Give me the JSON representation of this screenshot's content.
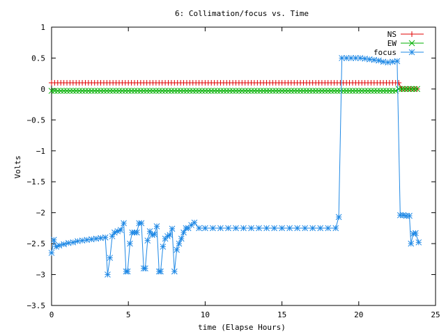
{
  "chart_data": {
    "type": "line",
    "title": "6: Collimation/focus vs. Time",
    "xlabel": "time (Elapse Hours)",
    "ylabel": "Volts",
    "xlim": [
      0,
      25
    ],
    "ylim": [
      -3.5,
      1
    ],
    "xticks": [
      0,
      5,
      10,
      15,
      20,
      25
    ],
    "yticks": [
      1,
      0.5,
      0,
      -0.5,
      -1,
      -1.5,
      -2,
      -2.5,
      -3,
      -3.5
    ],
    "grid": false,
    "legend_position": "top-right",
    "series": [
      {
        "name": "NS",
        "color": "#e00000",
        "marker": "plus",
        "x": [
          0.0,
          0.2,
          0.4,
          0.6,
          0.8,
          1.0,
          1.2,
          1.4,
          1.6,
          1.8,
          2.0,
          2.2,
          2.4,
          2.6,
          2.8,
          3.0,
          3.2,
          3.4,
          3.6,
          3.8,
          4.0,
          4.2,
          4.4,
          4.6,
          4.8,
          5.0,
          5.2,
          5.4,
          5.6,
          5.8,
          6.0,
          6.2,
          6.4,
          6.6,
          6.8,
          7.0,
          7.2,
          7.4,
          7.6,
          7.8,
          8.0,
          8.2,
          8.4,
          8.6,
          8.8,
          9.0,
          9.2,
          9.4,
          9.6,
          9.8,
          10.0,
          10.2,
          10.4,
          10.6,
          10.8,
          11.0,
          11.2,
          11.4,
          11.6,
          11.8,
          12.0,
          12.2,
          12.4,
          12.6,
          12.8,
          13.0,
          13.2,
          13.4,
          13.6,
          13.8,
          14.0,
          14.2,
          14.4,
          14.6,
          14.8,
          15.0,
          15.2,
          15.4,
          15.6,
          15.8,
          16.0,
          16.2,
          16.4,
          16.6,
          16.8,
          17.0,
          17.2,
          17.4,
          17.6,
          17.8,
          18.0,
          18.2,
          18.4,
          18.6,
          18.8,
          19.0,
          19.2,
          19.4,
          19.6,
          19.8,
          20.0,
          20.2,
          20.4,
          20.6,
          20.8,
          21.0,
          21.2,
          21.4,
          21.6,
          21.8,
          22.0,
          22.2,
          22.4,
          22.6,
          22.8,
          23.0,
          23.2,
          23.4,
          23.6,
          23.8
        ],
        "y": [
          0.1,
          0.1,
          0.1,
          0.1,
          0.1,
          0.1,
          0.1,
          0.1,
          0.1,
          0.1,
          0.1,
          0.1,
          0.1,
          0.1,
          0.1,
          0.1,
          0.1,
          0.1,
          0.1,
          0.1,
          0.1,
          0.1,
          0.1,
          0.1,
          0.1,
          0.1,
          0.1,
          0.1,
          0.1,
          0.1,
          0.1,
          0.1,
          0.1,
          0.1,
          0.1,
          0.1,
          0.1,
          0.1,
          0.1,
          0.1,
          0.1,
          0.1,
          0.1,
          0.1,
          0.1,
          0.1,
          0.1,
          0.1,
          0.1,
          0.1,
          0.1,
          0.1,
          0.1,
          0.1,
          0.1,
          0.1,
          0.1,
          0.1,
          0.1,
          0.1,
          0.1,
          0.1,
          0.1,
          0.1,
          0.1,
          0.1,
          0.1,
          0.1,
          0.1,
          0.1,
          0.1,
          0.1,
          0.1,
          0.1,
          0.1,
          0.1,
          0.1,
          0.1,
          0.1,
          0.1,
          0.1,
          0.1,
          0.1,
          0.1,
          0.1,
          0.1,
          0.1,
          0.1,
          0.1,
          0.1,
          0.1,
          0.1,
          0.1,
          0.1,
          0.1,
          0.1,
          0.1,
          0.1,
          0.1,
          0.1,
          0.1,
          0.1,
          0.1,
          0.1,
          0.1,
          0.1,
          0.1,
          0.1,
          0.1,
          0.1,
          0.1,
          0.1,
          0.1,
          0.1,
          0.0,
          0.0,
          0.0,
          0.0,
          0.0,
          0.0
        ]
      },
      {
        "name": "EW",
        "color": "#00b000",
        "marker": "cross",
        "x": [
          0.0,
          0.2,
          0.4,
          0.6,
          0.8,
          1.0,
          1.2,
          1.4,
          1.6,
          1.8,
          2.0,
          2.2,
          2.4,
          2.6,
          2.8,
          3.0,
          3.2,
          3.4,
          3.6,
          3.8,
          4.0,
          4.2,
          4.4,
          4.6,
          4.8,
          5.0,
          5.2,
          5.4,
          5.6,
          5.8,
          6.0,
          6.2,
          6.4,
          6.6,
          6.8,
          7.0,
          7.2,
          7.4,
          7.6,
          7.8,
          8.0,
          8.2,
          8.4,
          8.6,
          8.8,
          9.0,
          9.2,
          9.4,
          9.6,
          9.8,
          10.0,
          10.2,
          10.4,
          10.6,
          10.8,
          11.0,
          11.2,
          11.4,
          11.6,
          11.8,
          12.0,
          12.2,
          12.4,
          12.6,
          12.8,
          13.0,
          13.2,
          13.4,
          13.6,
          13.8,
          14.0,
          14.2,
          14.4,
          14.6,
          14.8,
          15.0,
          15.2,
          15.4,
          15.6,
          15.8,
          16.0,
          16.2,
          16.4,
          16.6,
          16.8,
          17.0,
          17.2,
          17.4,
          17.6,
          17.8,
          18.0,
          18.2,
          18.4,
          18.6,
          18.8,
          19.0,
          19.2,
          19.4,
          19.6,
          19.8,
          20.0,
          20.2,
          20.4,
          20.6,
          20.8,
          21.0,
          21.2,
          21.4,
          21.6,
          21.8,
          22.0,
          22.2,
          22.4,
          22.6,
          22.8,
          23.0,
          23.2,
          23.4,
          23.6,
          23.8
        ],
        "y": [
          -0.03,
          -0.03,
          -0.03,
          -0.03,
          -0.03,
          -0.03,
          -0.03,
          -0.03,
          -0.03,
          -0.03,
          -0.03,
          -0.03,
          -0.03,
          -0.03,
          -0.03,
          -0.03,
          -0.03,
          -0.03,
          -0.03,
          -0.03,
          -0.03,
          -0.03,
          -0.03,
          -0.03,
          -0.03,
          -0.03,
          -0.03,
          -0.03,
          -0.03,
          -0.03,
          -0.03,
          -0.03,
          -0.03,
          -0.03,
          -0.03,
          -0.03,
          -0.03,
          -0.03,
          -0.03,
          -0.03,
          -0.03,
          -0.03,
          -0.03,
          -0.03,
          -0.03,
          -0.03,
          -0.03,
          -0.03,
          -0.03,
          -0.03,
          -0.03,
          -0.03,
          -0.03,
          -0.03,
          -0.03,
          -0.03,
          -0.03,
          -0.03,
          -0.03,
          -0.03,
          -0.03,
          -0.03,
          -0.03,
          -0.03,
          -0.03,
          -0.03,
          -0.03,
          -0.03,
          -0.03,
          -0.03,
          -0.03,
          -0.03,
          -0.03,
          -0.03,
          -0.03,
          -0.03,
          -0.03,
          -0.03,
          -0.03,
          -0.03,
          -0.03,
          -0.03,
          -0.03,
          -0.03,
          -0.03,
          -0.03,
          -0.03,
          -0.03,
          -0.03,
          -0.03,
          -0.03,
          -0.03,
          -0.03,
          -0.03,
          -0.03,
          -0.03,
          -0.03,
          -0.03,
          -0.03,
          -0.03,
          -0.03,
          -0.03,
          -0.03,
          -0.03,
          -0.03,
          -0.03,
          -0.03,
          -0.03,
          -0.03,
          -0.03,
          -0.03,
          -0.03,
          -0.03,
          0.0,
          0.0,
          0.0,
          0.0,
          0.0,
          0.0,
          0.0
        ]
      },
      {
        "name": "focus",
        "color": "#1e88e5",
        "marker": "star",
        "x": [
          0.0,
          0.15,
          0.3,
          0.5,
          0.8,
          1.1,
          1.4,
          1.7,
          2.0,
          2.3,
          2.6,
          2.9,
          3.2,
          3.5,
          3.65,
          3.8,
          3.95,
          4.1,
          4.3,
          4.5,
          4.7,
          4.85,
          4.95,
          5.1,
          5.25,
          5.4,
          5.55,
          5.7,
          5.85,
          6.0,
          6.1,
          6.25,
          6.4,
          6.55,
          6.7,
          6.85,
          7.0,
          7.1,
          7.25,
          7.4,
          7.55,
          7.7,
          7.85,
          8.0,
          8.15,
          8.3,
          8.45,
          8.6,
          8.75,
          8.9,
          9.1,
          9.3,
          9.6,
          10.0,
          10.5,
          11.0,
          11.5,
          12.0,
          12.5,
          13.0,
          13.5,
          14.0,
          14.5,
          15.0,
          15.5,
          16.0,
          16.5,
          17.0,
          17.5,
          18.0,
          18.5,
          18.7,
          18.9,
          19.2,
          19.5,
          19.8,
          20.1,
          20.4,
          20.7,
          21.0,
          21.3,
          21.6,
          21.9,
          22.2,
          22.5,
          22.7,
          22.9,
          23.1,
          23.3,
          23.4,
          23.55,
          23.7,
          23.9
        ],
        "y": [
          -2.65,
          -2.44,
          -2.55,
          -2.53,
          -2.51,
          -2.49,
          -2.48,
          -2.46,
          -2.45,
          -2.44,
          -2.43,
          -2.42,
          -2.41,
          -2.4,
          -3.0,
          -2.73,
          -2.38,
          -2.32,
          -2.3,
          -2.28,
          -2.17,
          -2.95,
          -2.95,
          -2.5,
          -2.32,
          -2.32,
          -2.32,
          -2.17,
          -2.17,
          -2.9,
          -2.9,
          -2.45,
          -2.3,
          -2.36,
          -2.35,
          -2.22,
          -2.95,
          -2.95,
          -2.55,
          -2.42,
          -2.38,
          -2.36,
          -2.26,
          -2.95,
          -2.6,
          -2.5,
          -2.42,
          -2.32,
          -2.25,
          -2.25,
          -2.2,
          -2.16,
          -2.25,
          -2.25,
          -2.25,
          -2.25,
          -2.25,
          -2.25,
          -2.25,
          -2.25,
          -2.25,
          -2.25,
          -2.25,
          -2.25,
          -2.25,
          -2.25,
          -2.25,
          -2.25,
          -2.25,
          -2.25,
          -2.25,
          -2.07,
          0.5,
          0.5,
          0.5,
          0.5,
          0.5,
          0.49,
          0.48,
          0.47,
          0.46,
          0.44,
          0.43,
          0.44,
          0.45,
          -2.04,
          -2.04,
          -2.05,
          -2.05,
          -2.5,
          -2.34,
          -2.33,
          -2.48
        ]
      }
    ]
  }
}
